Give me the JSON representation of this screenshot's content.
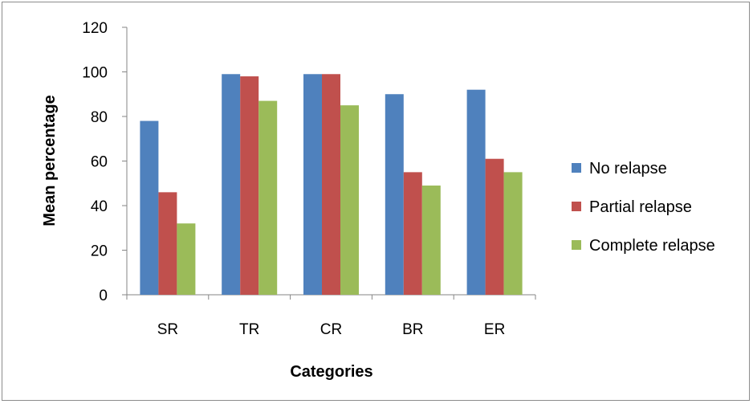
{
  "chart_data": {
    "type": "bar",
    "categories": [
      "SR",
      "TR",
      "CR",
      "BR",
      "ER"
    ],
    "series": [
      {
        "name": "No relapse",
        "color": "#4F81BD",
        "values": [
          78,
          99,
          99,
          90,
          92
        ]
      },
      {
        "name": "Partial relapse",
        "color": "#C0504D",
        "values": [
          46,
          98,
          99,
          55,
          61
        ]
      },
      {
        "name": "Complete relapse",
        "color": "#9BBB59",
        "values": [
          32,
          87,
          85,
          49,
          55
        ]
      }
    ],
    "xlabel": "Categories",
    "ylabel": "Mean percentage",
    "ylim": [
      0,
      120
    ],
    "yticks": [
      0,
      20,
      40,
      60,
      80,
      100,
      120
    ],
    "grid": false,
    "legend_position": "right"
  }
}
